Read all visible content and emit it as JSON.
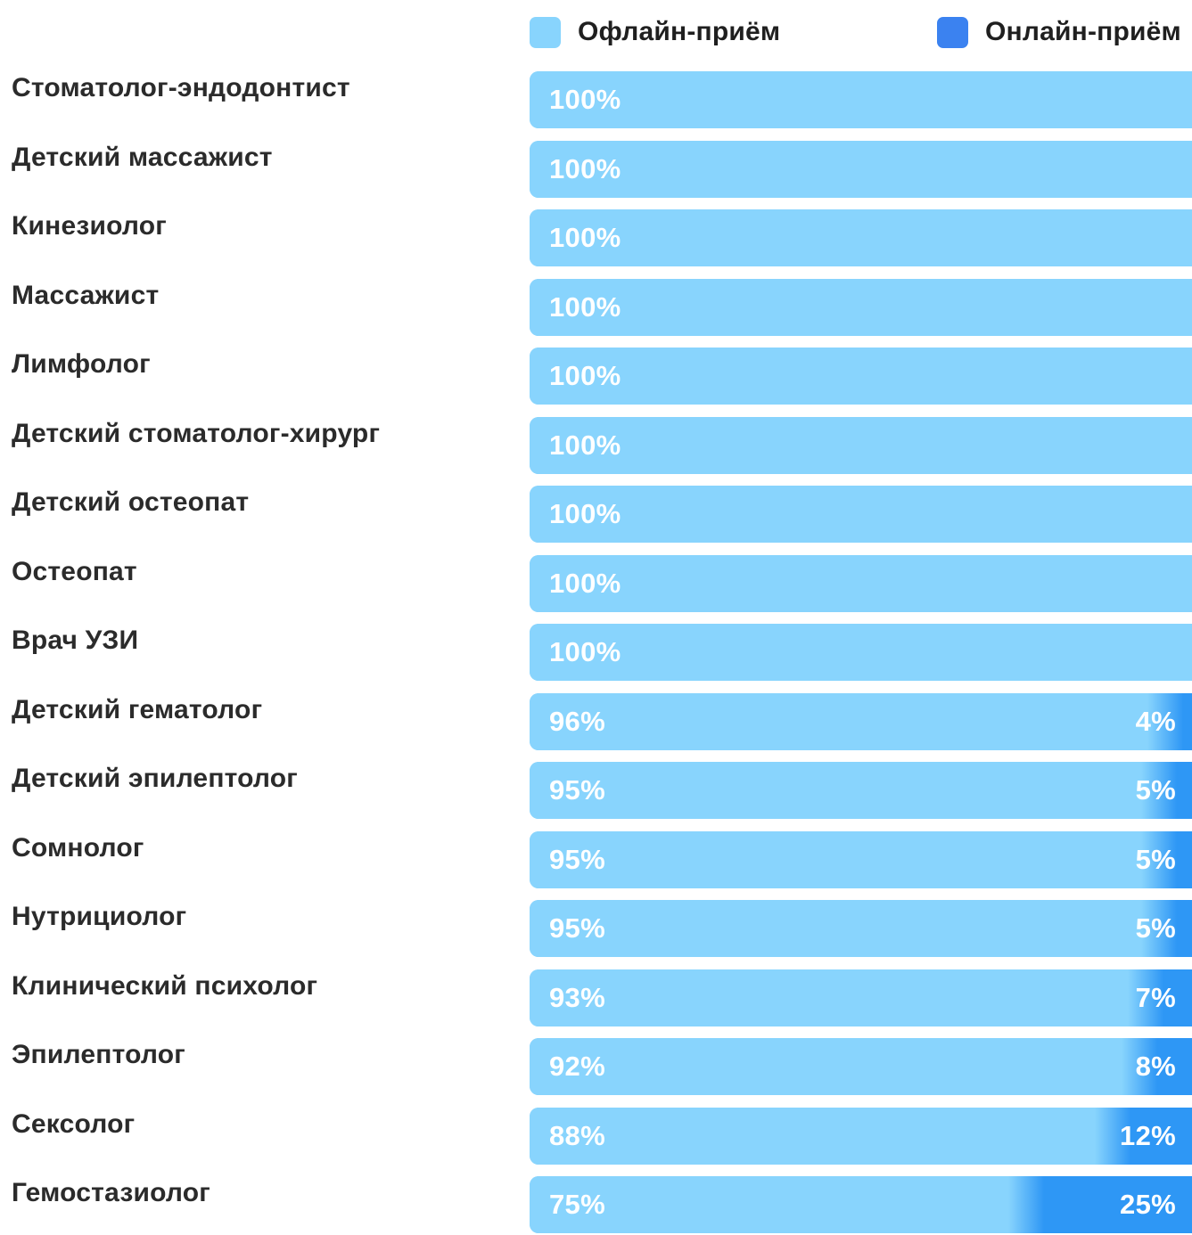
{
  "legend": {
    "offline_label": "Офлайн-приём",
    "online_label": "Онлайн-приём",
    "offline_color": "#88d4fd",
    "online_color": "#3b82f0"
  },
  "chart_data": {
    "type": "bar",
    "orientation": "horizontal",
    "stacked": true,
    "percent_stacked": true,
    "categories": [
      "Стоматолог-эндодонтист",
      "Детский массажист",
      "Кинезиолог",
      "Массажист",
      "Лимфолог",
      "Детский стоматолог-хирург",
      "Детский остеопат",
      "Остеопат",
      "Врач УЗИ",
      "Детский гематолог",
      "Детский эпилептолог",
      "Сомнолог",
      "Нутрициолог",
      "Клинический психолог",
      "Эпилептолог",
      "Сексолог",
      "Гемостазиолог"
    ],
    "series": [
      {
        "name": "Офлайн-приём",
        "color": "#88d4fd",
        "values": [
          100,
          100,
          100,
          100,
          100,
          100,
          100,
          100,
          100,
          96,
          95,
          95,
          95,
          93,
          92,
          88,
          75
        ],
        "labels": [
          "100%",
          "100%",
          "100%",
          "100%",
          "100%",
          "100%",
          "100%",
          "100%",
          "100%",
          "96%",
          "95%",
          "95%",
          "95%",
          "93%",
          "92%",
          "88%",
          "75%"
        ]
      },
      {
        "name": "Онлайн-приём",
        "color": "#2e97f5",
        "values": [
          0,
          0,
          0,
          0,
          0,
          0,
          0,
          0,
          0,
          4,
          5,
          5,
          5,
          7,
          8,
          12,
          25
        ],
        "labels": [
          "",
          "",
          "",
          "",
          "",
          "",
          "",
          "",
          "",
          "4%",
          "5%",
          "5%",
          "5%",
          "7%",
          "8%",
          "12%",
          "25%"
        ]
      }
    ],
    "xlim": [
      0,
      100
    ],
    "legend_position": "top-right",
    "grid": false
  }
}
